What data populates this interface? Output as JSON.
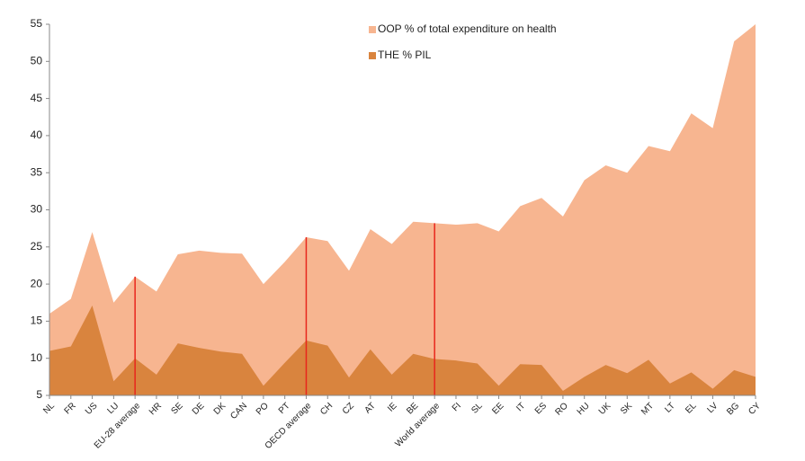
{
  "chart_data": {
    "type": "area",
    "categories": [
      "NL",
      "FR",
      "US",
      "LU",
      "EU-28 average",
      "HR",
      "SE",
      "DE",
      "DK",
      "CAN",
      "PO",
      "PT",
      "OECD average",
      "CH",
      "CZ",
      "AT",
      "IE",
      "BE",
      "World average",
      "FI",
      "SL",
      "EE",
      "IT",
      "ES",
      "RO",
      "HU",
      "UK",
      "SK",
      "MT",
      "LT",
      "EL",
      "LV",
      "BG",
      "CY"
    ],
    "series": [
      {
        "name": "OOP % of total expenditure on health",
        "color": "#f7b590",
        "values": [
          16,
          18,
          27,
          17.5,
          21,
          19,
          24,
          24.5,
          24.2,
          24.1,
          20,
          23,
          26.3,
          25.8,
          21.8,
          27.4,
          25.4,
          28.4,
          28.2,
          28,
          28.2,
          27.1,
          30.5,
          31.6,
          29.1,
          34,
          36,
          35,
          38.6,
          37.9,
          43,
          41,
          52.7,
          55
        ]
      },
      {
        "name": "THE % PIL",
        "color": "#d9843e",
        "values": [
          11,
          11.6,
          17.1,
          6.9,
          10,
          7.8,
          12,
          11.4,
          10.9,
          10.6,
          6.3,
          9.4,
          12.4,
          11.7,
          7.4,
          11.2,
          7.8,
          10.6,
          9.9,
          9.7,
          9.3,
          6.3,
          9.2,
          9.1,
          5.6,
          7.5,
          9.1,
          8,
          9.8,
          6.6,
          8.1,
          5.9,
          8.4,
          7.5
        ]
      }
    ],
    "ylim": [
      5,
      55
    ],
    "yticks": [
      5,
      10,
      15,
      20,
      25,
      30,
      35,
      40,
      45,
      50,
      55
    ],
    "grid": false
  }
}
